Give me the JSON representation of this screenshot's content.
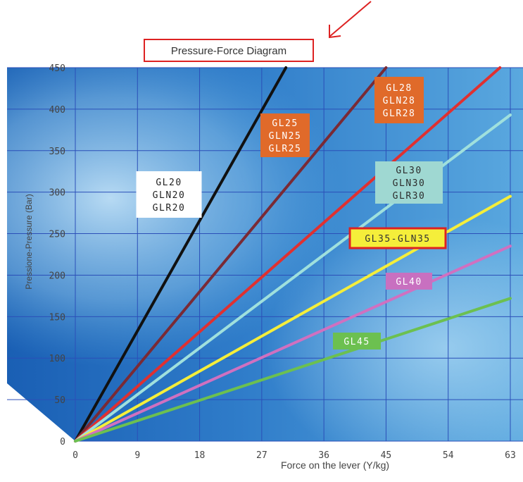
{
  "chart_data": {
    "type": "line",
    "title": "Pressure-Force Diagram",
    "xlabel": "Force on the lever (Y/kg)",
    "ylabel": "Pressione-Pressure (Bar)",
    "xlim": [
      0,
      63
    ],
    "ylim": [
      0,
      450
    ],
    "x_ticks": [
      0,
      9,
      18,
      27,
      36,
      45,
      54,
      63
    ],
    "y_ticks": [
      0,
      50,
      100,
      150,
      200,
      250,
      300,
      350,
      400,
      450
    ],
    "grid": true,
    "series": [
      {
        "name": "GL20 GLN20 GLR20",
        "label_lines": [
          "GL20",
          "GLN20",
          "GLR20"
        ],
        "color": "#111111",
        "label_bg": "#ffffff",
        "label_color": "#222222",
        "x": [
          0,
          30.5
        ],
        "y": [
          0,
          450
        ]
      },
      {
        "name": "GL25 GLN25 GLR25",
        "label_lines": [
          "GL25",
          "GLN25",
          "GLR25"
        ],
        "color": "#7a2a35",
        "label_bg": "#e06a2a",
        "label_color": "#ffffff",
        "x": [
          0,
          45
        ],
        "y": [
          0,
          450
        ]
      },
      {
        "name": "GL28 GLN28 GLR28",
        "label_lines": [
          "GL28",
          "GLN28",
          "GLR28"
        ],
        "color": "#e03030",
        "label_bg": "#e06a2a",
        "label_color": "#ffffff",
        "x": [
          0,
          61.5
        ],
        "y": [
          0,
          450
        ]
      },
      {
        "name": "GL30 GLN30 GLR30",
        "label_lines": [
          "GL30",
          "GLN30",
          "GLR30"
        ],
        "color": "#9fe0dd",
        "label_bg": "#9fd8d2",
        "label_color": "#2c2c2c",
        "x": [
          0,
          63
        ],
        "y": [
          0,
          393
        ]
      },
      {
        "name": "GL35-GLN35",
        "label_lines": [
          "GL35-GLN35"
        ],
        "color": "#f5ee3a",
        "label_bg": "#f5ee3a",
        "label_color": "#333333",
        "label_border": "#dd2222",
        "x": [
          0,
          63
        ],
        "y": [
          0,
          295
        ]
      },
      {
        "name": "GL40",
        "label_lines": [
          "GL40"
        ],
        "color": "#d070c0",
        "label_bg": "#c870c0",
        "label_color": "#ffffff",
        "x": [
          0,
          63
        ],
        "y": [
          0,
          235
        ]
      },
      {
        "name": "GL45",
        "label_lines": [
          "GL45"
        ],
        "color": "#6cc050",
        "label_bg": "#6cc050",
        "label_color": "#ffffff",
        "x": [
          0,
          63
        ],
        "y": [
          0,
          172
        ]
      }
    ]
  },
  "colors": {
    "title_border": "#dd2222",
    "arrow": "#dd2222",
    "grid": "#2b4fb8",
    "axis_text": "#444444"
  }
}
